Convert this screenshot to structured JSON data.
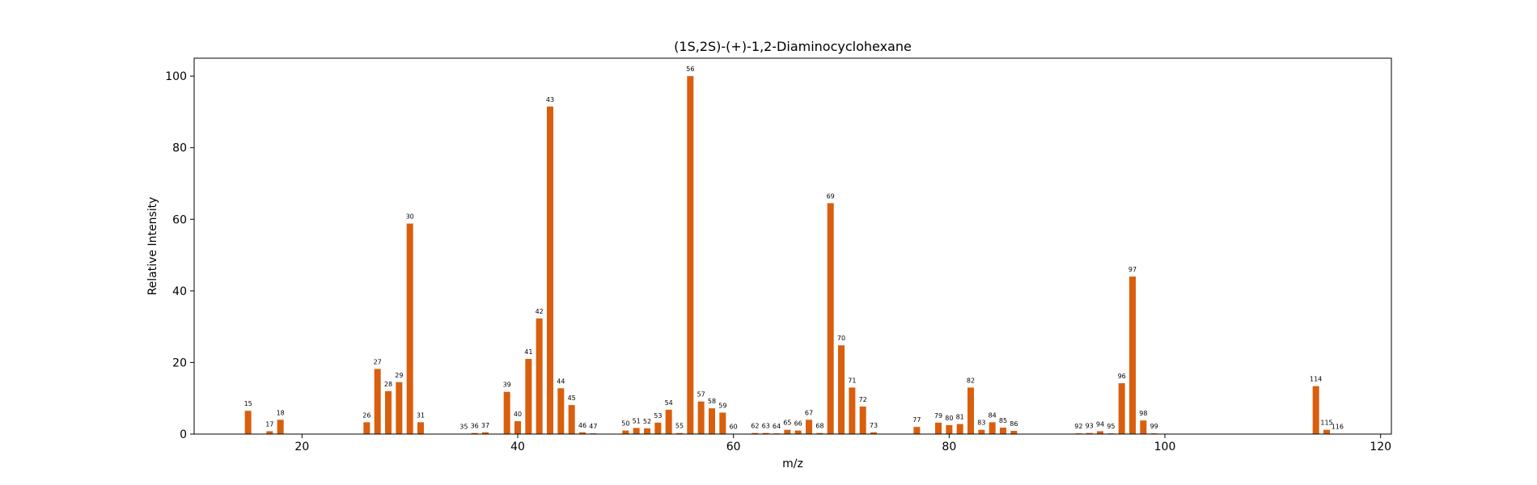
{
  "chart_data": {
    "type": "bar",
    "title": "(1S,2S)-(+)-1,2-Diaminocyclohexane",
    "xlabel": "m/z",
    "ylabel": "Relative Intensity",
    "xlim": [
      10,
      121
    ],
    "ylim": [
      0,
      105
    ],
    "xticks": [
      20,
      40,
      60,
      80,
      100,
      120
    ],
    "yticks": [
      0,
      20,
      40,
      60,
      80,
      100
    ],
    "grid": false,
    "bar_color": "#d95f0e",
    "x": [
      15,
      17,
      18,
      26,
      27,
      28,
      29,
      30,
      31,
      35,
      36,
      37,
      39,
      40,
      41,
      42,
      43,
      44,
      45,
      46,
      47,
      50,
      51,
      52,
      53,
      54,
      55,
      56,
      57,
      58,
      59,
      60,
      62,
      63,
      64,
      65,
      66,
      67,
      68,
      69,
      70,
      71,
      72,
      73,
      77,
      79,
      80,
      81,
      82,
      83,
      84,
      85,
      86,
      92,
      93,
      94,
      95,
      96,
      97,
      98,
      99,
      114,
      115,
      116
    ],
    "values": [
      6.5,
      0.8,
      4.0,
      3.3,
      18.2,
      12.0,
      14.5,
      58.8,
      3.3,
      0.1,
      0.3,
      0.5,
      11.8,
      3.6,
      21.0,
      32.3,
      91.5,
      12.8,
      8.1,
      0.5,
      0.2,
      1.0,
      1.7,
      1.6,
      3.2,
      6.8,
      0.3,
      100.0,
      9.1,
      7.2,
      6.0,
      0.1,
      0.3,
      0.3,
      0.2,
      1.2,
      1.0,
      4.0,
      0.3,
      64.5,
      24.8,
      13.0,
      7.7,
      0.5,
      2.0,
      3.2,
      2.5,
      2.8,
      13.0,
      1.2,
      3.3,
      1.8,
      0.9,
      0.2,
      0.3,
      0.8,
      0.2,
      14.2,
      44.0,
      3.8,
      0.2,
      13.4,
      1.2,
      0.1
    ]
  }
}
